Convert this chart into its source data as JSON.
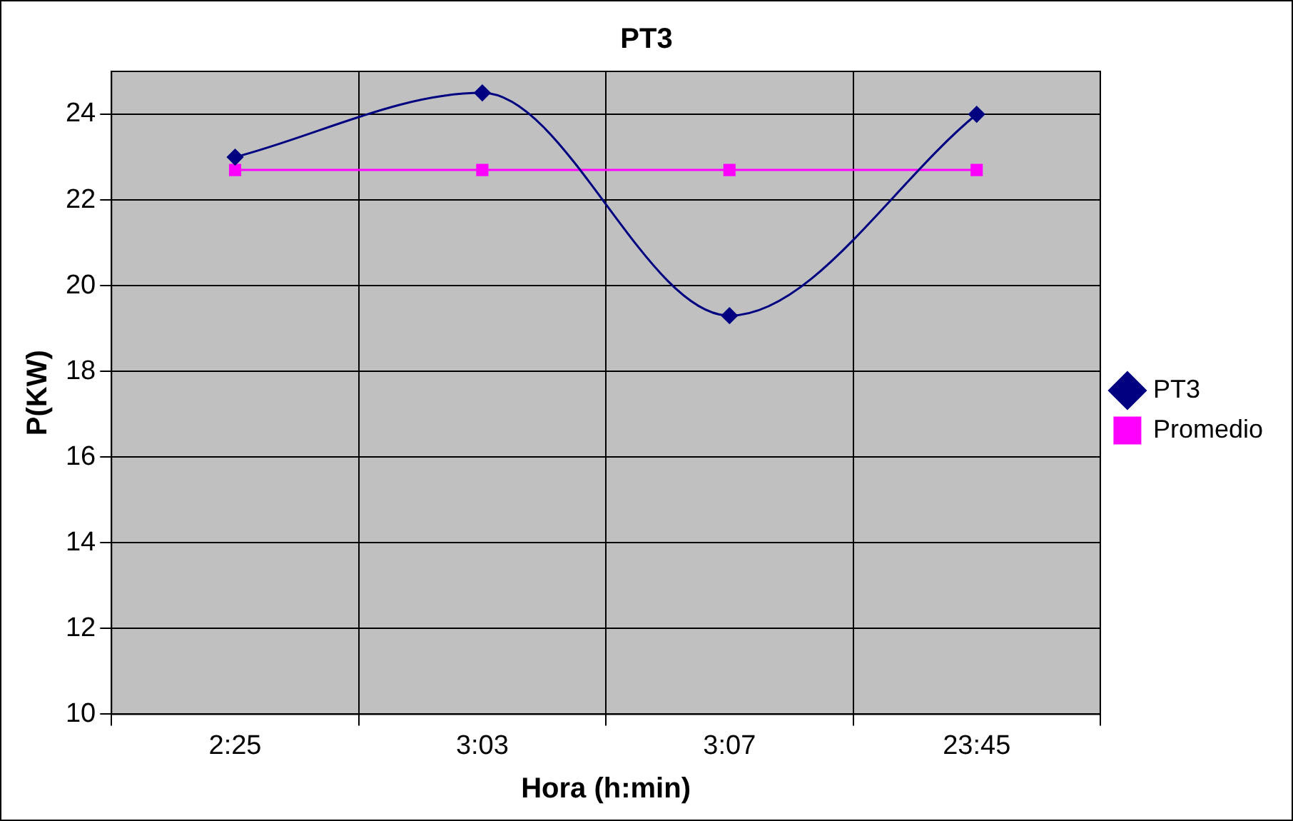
{
  "chart_data": {
    "type": "line",
    "title": "PT3",
    "xlabel": "Hora (h:min)",
    "ylabel": "P(KW)",
    "categories": [
      "2:25",
      "3:03",
      "3:07",
      "23:45"
    ],
    "series": [
      {
        "name": "PT3",
        "color": "#000080",
        "values": [
          23.0,
          24.5,
          19.3,
          24.0
        ],
        "marker": "diamond"
      },
      {
        "name": "Promedio",
        "color": "#ff00ff",
        "values": [
          22.7,
          22.7,
          22.7,
          22.7
        ],
        "marker": "square"
      }
    ],
    "ylim": [
      10,
      25
    ],
    "yticks": [
      10,
      12,
      14,
      16,
      18,
      20,
      22,
      24
    ],
    "grid": true,
    "legend": "right",
    "line_style": "solid"
  }
}
